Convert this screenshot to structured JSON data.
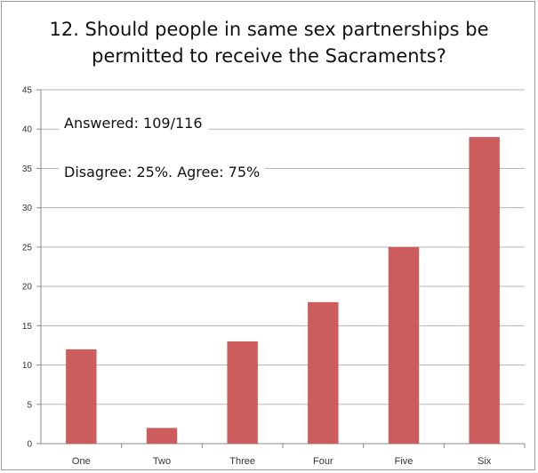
{
  "chart_data": {
    "type": "bar",
    "title_lines": [
      "12. Should people in same sex partnerships be",
      "permitted to receive the Sacraments?"
    ],
    "categories": [
      "One",
      "Two",
      "Three",
      "Four",
      "Five",
      "Six"
    ],
    "values": [
      12,
      2,
      13,
      18,
      25,
      39
    ],
    "ylim": [
      0,
      45
    ],
    "yticks": [
      0,
      5,
      10,
      15,
      20,
      25,
      30,
      35,
      40,
      45
    ],
    "grid": true,
    "bar_color": "#cd5c5c",
    "annotations": [
      "Answered: 109/116",
      "Disagree: 25%. Agree: 75%"
    ]
  }
}
